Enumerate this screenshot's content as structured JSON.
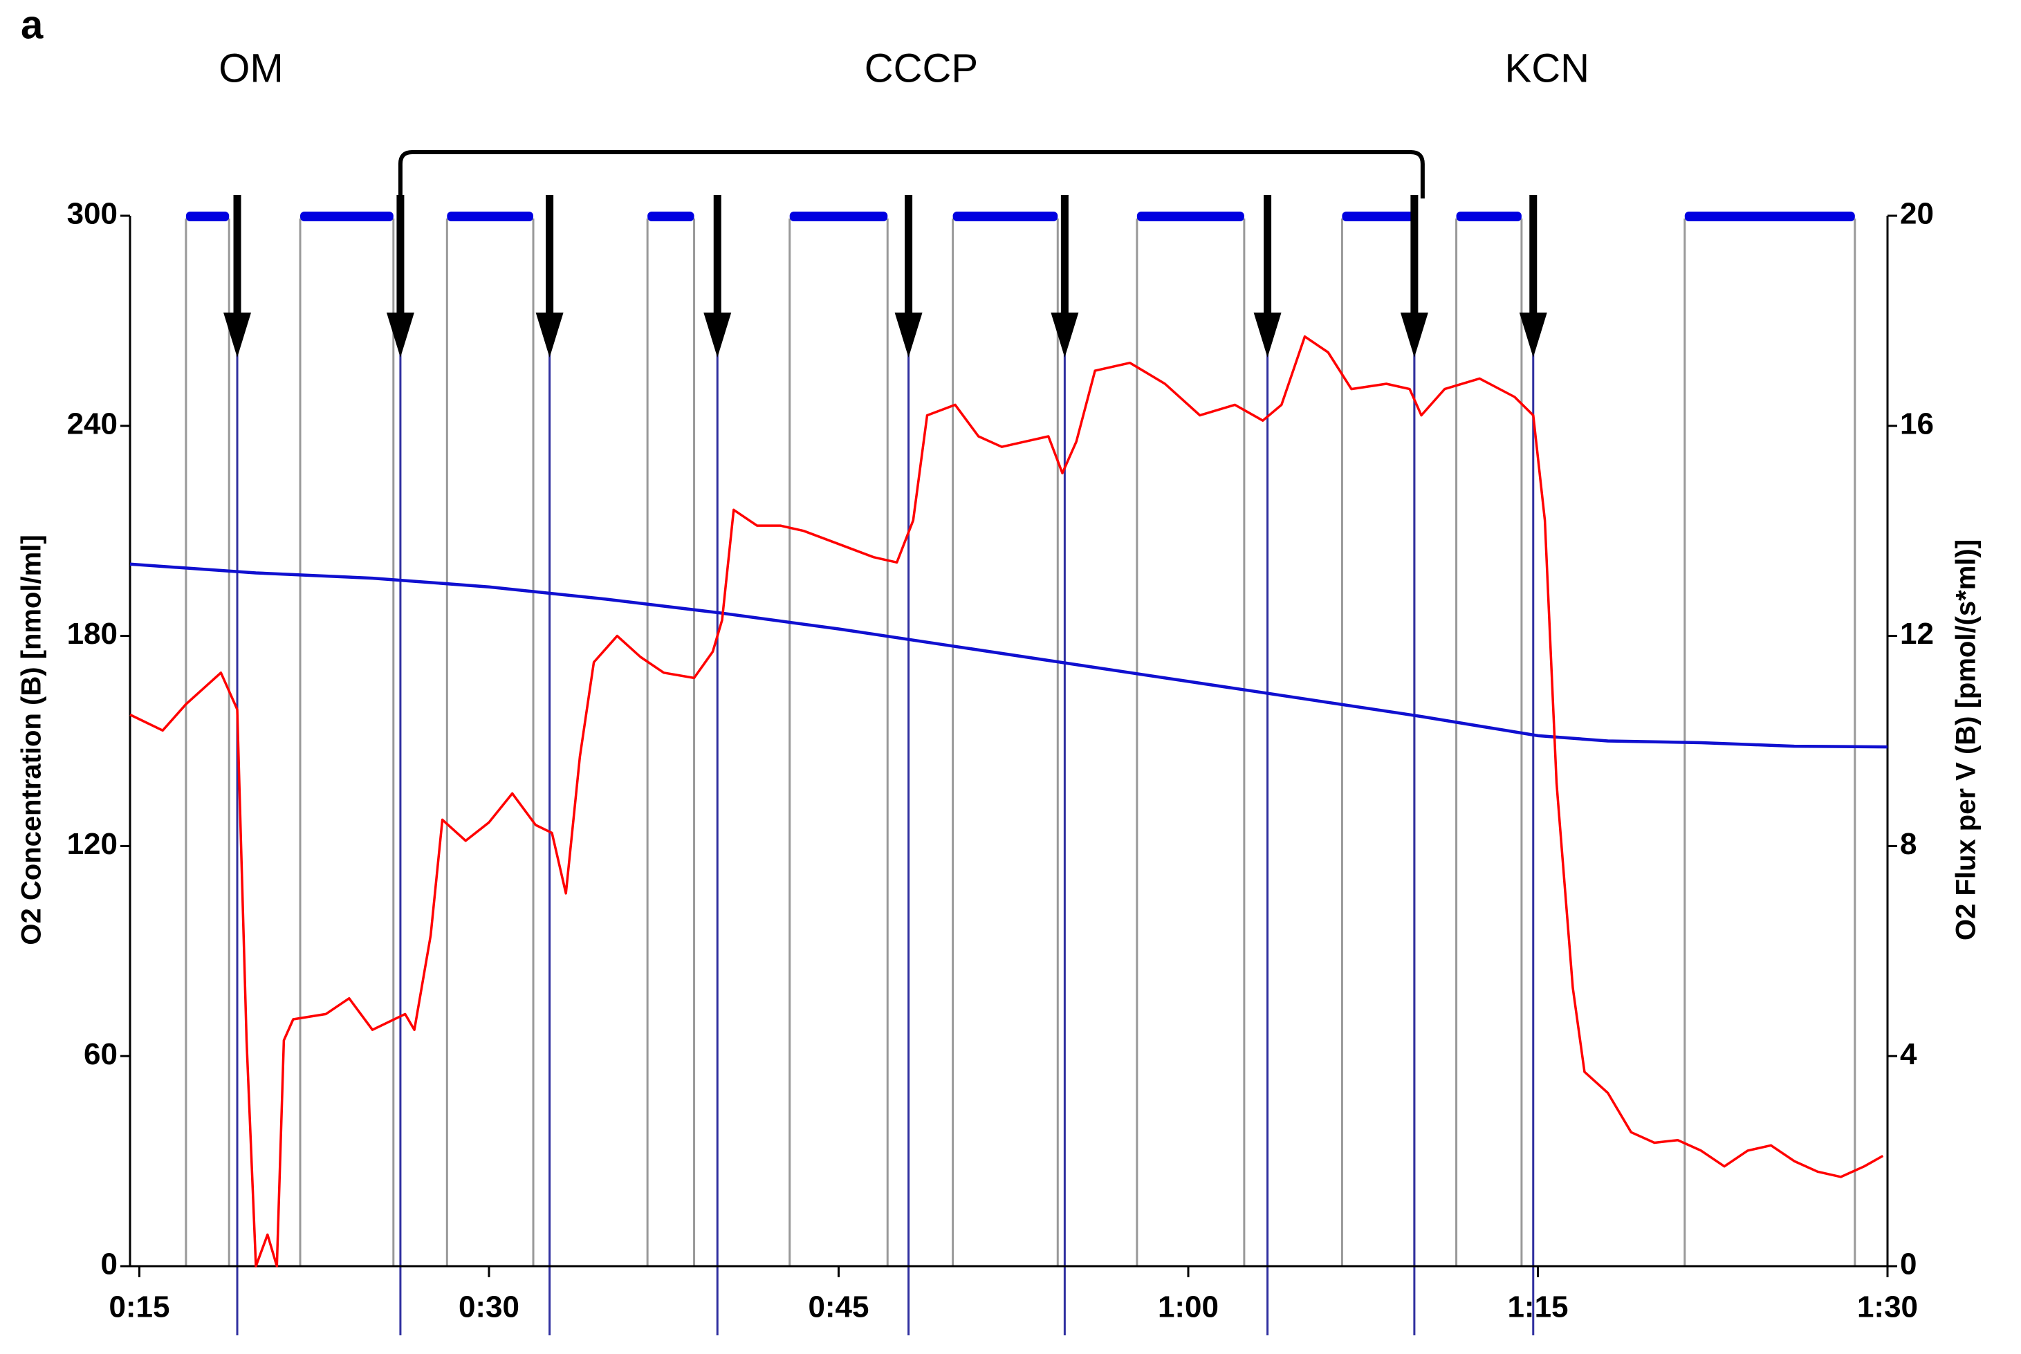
{
  "chart_data": {
    "type": "line",
    "panel_label": "a",
    "annotations": [
      {
        "text": "OM",
        "arrows": [
          0
        ]
      },
      {
        "text": "CCCP",
        "arrows": [
          1,
          7
        ]
      },
      {
        "text": "KCN",
        "arrows": [
          8
        ]
      }
    ],
    "ylabel": "O2 Concentration  (B) [nmol/ml]",
    "y2label": "O2 Flux per V  (B) [pmol/(s*ml)]",
    "xlim": [
      14.6,
      90
    ],
    "xticks": [
      {
        "value": 15,
        "label": "0:15"
      },
      {
        "value": 30,
        "label": "0:30"
      },
      {
        "value": 45,
        "label": "0:45"
      },
      {
        "value": 60,
        "label": "1:00"
      },
      {
        "value": 75,
        "label": "1:15"
      },
      {
        "value": 90,
        "label": "1:30"
      }
    ],
    "ylim": [
      0,
      300
    ],
    "yticks": [
      0,
      60,
      120,
      180,
      240,
      300
    ],
    "y2lim": [
      0,
      20
    ],
    "y2ticks": [
      0,
      4,
      8,
      12,
      16,
      20
    ],
    "arrows": [
      19.2,
      26.2,
      32.6,
      39.8,
      48.0,
      54.7,
      63.4,
      69.7,
      74.8
    ],
    "marks": [
      [
        17.0,
        18.85
      ],
      [
        21.9,
        25.9
      ],
      [
        28.2,
        31.9
      ],
      [
        36.8,
        38.8
      ],
      [
        42.9,
        47.1
      ],
      [
        49.9,
        54.4
      ],
      [
        57.8,
        62.4
      ],
      [
        66.6,
        69.7
      ],
      [
        71.5,
        74.3
      ],
      [
        81.3,
        88.6
      ]
    ],
    "mark_color": "#0000e0",
    "series": [
      {
        "name": "O2 Concentration",
        "color": "#1010d0",
        "axis": "y",
        "x": [
          14.6,
          20,
          25,
          30,
          35,
          40,
          45,
          50,
          55,
          60,
          65,
          70,
          75,
          78,
          82,
          86,
          90
        ],
        "values": [
          200.5,
          198,
          196.5,
          194,
          190.5,
          186.5,
          182,
          177,
          172,
          167,
          162,
          157,
          151.5,
          150,
          149.5,
          148.5,
          148.3
        ]
      },
      {
        "name": "O2 Flux per V",
        "color": "#ff0000",
        "axis": "y2",
        "x": [
          14.6,
          16,
          17,
          18.5,
          19.2,
          19.6,
          20,
          20.5,
          20.9,
          21.2,
          21.6,
          23,
          24,
          25,
          26.4,
          26.8,
          27.5,
          28,
          29,
          30,
          31,
          32,
          32.7,
          33.3,
          33.9,
          34.5,
          35.5,
          36.5,
          37.5,
          38.8,
          39.6,
          40,
          40.5,
          41.5,
          42.5,
          43.5,
          45,
          46.5,
          47.5,
          48.2,
          48.8,
          50,
          51,
          52,
          53,
          54,
          54.6,
          55.2,
          56,
          57.5,
          59,
          60.5,
          62,
          63.2,
          64,
          65,
          66,
          67,
          68.5,
          69.5,
          70,
          71,
          72.5,
          74,
          74.8,
          75.3,
          75.8,
          76.5,
          77,
          78,
          79,
          80,
          81,
          82,
          83,
          84,
          85,
          86,
          87,
          88,
          89,
          89.8
        ],
        "values": [
          10.5,
          10.2,
          10.7,
          11.3,
          10.6,
          4.3,
          0,
          0.6,
          0,
          4.3,
          4.7,
          4.8,
          5.1,
          4.5,
          4.8,
          4.5,
          6.3,
          8.5,
          8.1,
          8.45,
          9.0,
          8.4,
          8.25,
          7.1,
          9.7,
          11.5,
          12.0,
          11.6,
          11.3,
          11.2,
          11.7,
          12.3,
          14.4,
          14.1,
          14.1,
          14.0,
          13.75,
          13.5,
          13.4,
          14.2,
          16.2,
          16.4,
          15.8,
          15.6,
          15.7,
          15.8,
          15.1,
          15.7,
          17.05,
          17.2,
          16.8,
          16.2,
          16.4,
          16.1,
          16.4,
          17.7,
          17.4,
          16.7,
          16.8,
          16.7,
          16.2,
          16.7,
          16.9,
          16.55,
          16.2,
          14.2,
          9.2,
          5.3,
          3.7,
          3.3,
          2.55,
          2.35,
          2.4,
          2.2,
          1.9,
          2.2,
          2.3,
          2.0,
          1.8,
          1.7,
          1.9,
          2.1
        ]
      }
    ]
  }
}
